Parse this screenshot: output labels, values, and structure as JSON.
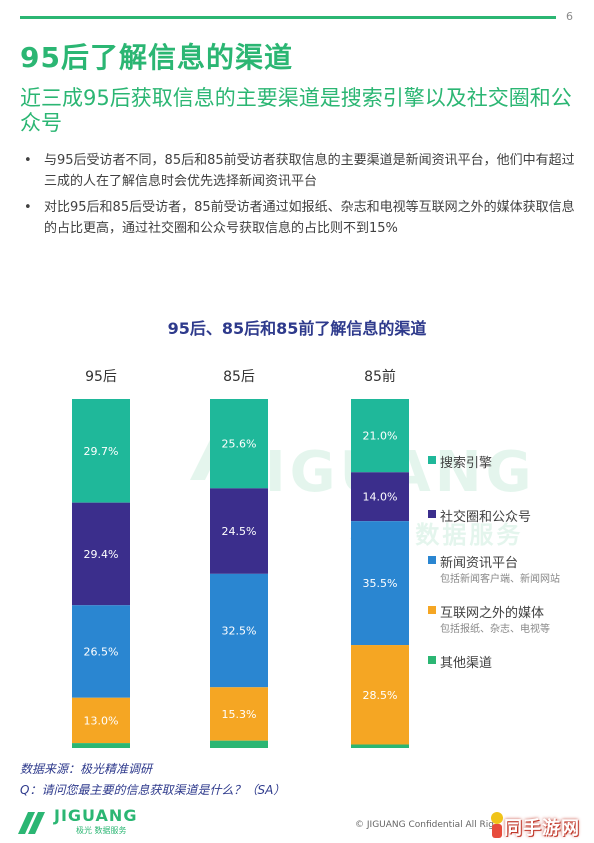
{
  "page": {
    "number": "6",
    "title": "95后了解信息的渠道",
    "subtitle": "近三成95后获取信息的主要渠道是搜索引擎以及社交圈和公众号",
    "bullets": [
      "与95后受访者不同，85后和85前受访者获取信息的主要渠道是新闻资讯平台，他们中有超过三成的人在了解信息时会优先选择新闻资讯平台",
      "对比95后和85后受访者，85前受访者通过如报纸、杂志和电视等互联网之外的媒体获取信息的占比更高，通过社交圈和公众号获取信息的占比则不到15%"
    ],
    "source": "数据来源：极光精准调研",
    "question": "Q：请问您最主要的信息获取渠道是什么？（SA）",
    "logo_text": "JIGUANG",
    "logo_sub": "极光 数据服务",
    "watermark": "JIGUANG",
    "watermark_sub": "极光 数据服务",
    "footer": "© JIGUANG  Confidential  All Rig",
    "badge": "同手游网"
  },
  "colors": {
    "brand_green": "#2bb673",
    "navy": "#2e3a8c",
    "search": "#1fb89a",
    "social": "#3b2e8c",
    "news": "#2a86d1",
    "offline": "#f5a623",
    "other": "#2bb673"
  },
  "chart_data": {
    "type": "bar",
    "stacked": true,
    "orientation": "vertical",
    "title": "95后、85后和85前了解信息的渠道",
    "categories": [
      "95后",
      "85后",
      "85前"
    ],
    "series": [
      {
        "name": "搜索引擎",
        "color": "#1fb89a",
        "values": [
          29.7,
          25.6,
          21.0
        ]
      },
      {
        "name": "社交圈和公众号",
        "color": "#3b2e8c",
        "values": [
          29.4,
          24.5,
          14.0
        ]
      },
      {
        "name": "新闻资讯平台",
        "color": "#2a86d1",
        "values": [
          26.5,
          32.5,
          35.5
        ],
        "note": "包括新闻客户端、新闻网站"
      },
      {
        "name": "互联网之外的媒体",
        "color": "#f5a623",
        "values": [
          13.0,
          15.3,
          28.5
        ],
        "note": "包括报纸、杂志、电视等"
      },
      {
        "name": "其他渠道",
        "color": "#2bb673",
        "values": [
          1.4,
          2.1,
          1.0
        ]
      }
    ],
    "data_labels": [
      [
        "29.7%",
        "29.4%",
        "26.5%",
        "13.0%",
        ""
      ],
      [
        "25.6%",
        "24.5%",
        "32.5%",
        "15.3%",
        ""
      ],
      [
        "21.0%",
        "14.0%",
        "35.5%",
        "28.5%",
        ""
      ]
    ],
    "ylim": [
      0,
      100
    ],
    "legend_position": "right",
    "grid": false
  }
}
